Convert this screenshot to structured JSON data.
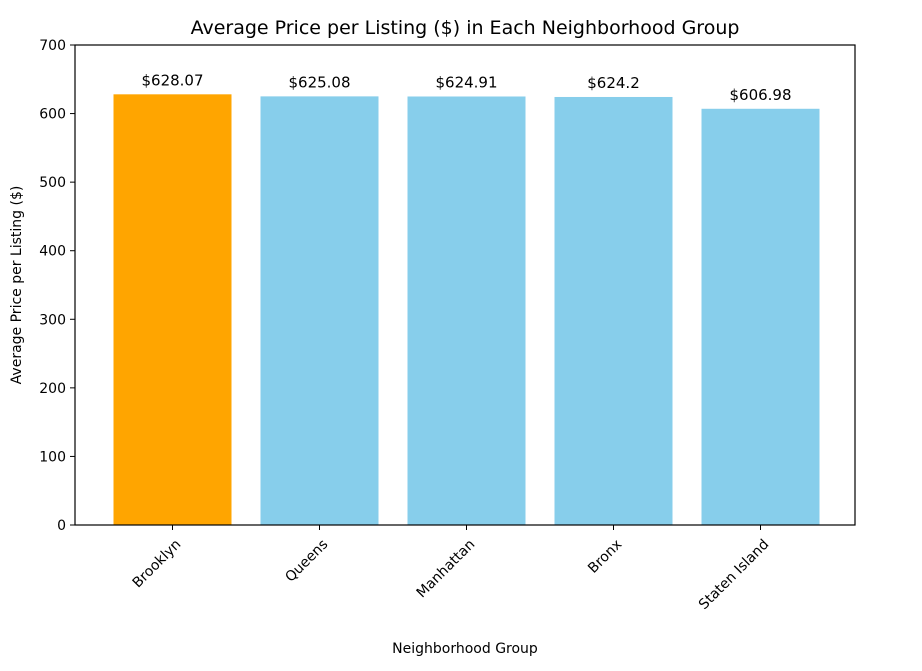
{
  "chart_data": {
    "type": "bar",
    "title": "Average Price per Listing ($) in Each Neighborhood Group",
    "xlabel": "Neighborhood Group",
    "ylabel": "Average Price per Listing ($)",
    "categories": [
      "Brooklyn",
      "Queens",
      "Manhattan",
      "Bronx",
      "Staten Island"
    ],
    "values": [
      628.07,
      625.08,
      624.91,
      624.2,
      606.98
    ],
    "value_labels": [
      "$628.07",
      "$625.08",
      "$624.91",
      "$624.2",
      "$606.98"
    ],
    "bar_colors": [
      "#ffa500",
      "#87ceeb",
      "#87ceeb",
      "#87ceeb",
      "#87ceeb"
    ],
    "ylim": [
      0,
      700
    ],
    "yticks": [
      0,
      100,
      200,
      300,
      400,
      500,
      600,
      700
    ],
    "grid": false,
    "legend": false
  }
}
